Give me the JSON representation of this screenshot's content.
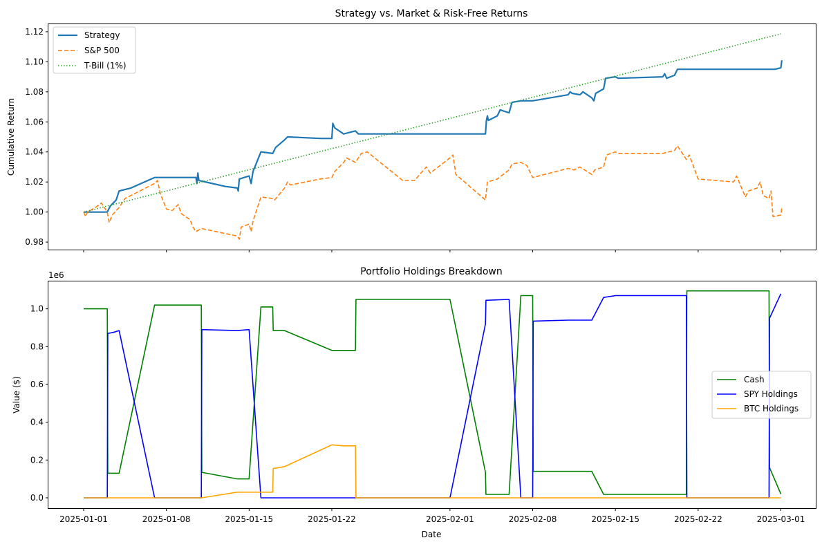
{
  "chart_data": [
    {
      "type": "line",
      "title": "Strategy vs. Market & Risk-Free Returns",
      "xlabel": "",
      "ylabel": "Cumulative Return",
      "x_range": [
        "2025-01-01",
        "2025-03-01"
      ],
      "ylim": [
        0.975,
        1.125
      ],
      "yticks": [
        "0.98",
        "1.00",
        "1.02",
        "1.04",
        "1.06",
        "1.08",
        "1.10",
        "1.12"
      ],
      "yticks_values": [
        0.98,
        1.0,
        1.02,
        1.04,
        1.06,
        1.08,
        1.1,
        1.12
      ],
      "xtick_labels_visible": false,
      "legend_position": "upper-left",
      "series": [
        {
          "name": "Strategy",
          "color": "#1f77b4",
          "style": "solid",
          "points": [
            [
              "2025-01-01",
              1.0
            ],
            [
              "2025-01-02",
              1.0
            ],
            [
              "2025-01-03",
              1.0
            ],
            [
              "2025-01-03 06:00",
              1.004
            ],
            [
              "2025-01-03 18:00",
              1.008
            ],
            [
              "2025-01-04",
              1.014
            ],
            [
              "2025-01-05",
              1.016
            ],
            [
              "2025-01-07",
              1.023
            ],
            [
              "2025-01-08",
              1.023
            ],
            [
              "2025-01-10",
              1.023
            ],
            [
              "2025-01-10 12:00",
              1.023
            ],
            [
              "2025-01-10 14:00",
              1.019
            ],
            [
              "2025-01-10 16:00",
              1.026
            ],
            [
              "2025-01-10 18:00",
              1.021
            ],
            [
              "2025-01-13",
              1.017
            ],
            [
              "2025-01-14",
              1.016
            ],
            [
              "2025-01-14 02:00",
              1.014
            ],
            [
              "2025-01-14 04:00",
              1.022
            ],
            [
              "2025-01-15",
              1.024
            ],
            [
              "2025-01-15 04:00",
              1.019
            ],
            [
              "2025-01-15 08:00",
              1.027
            ],
            [
              "2025-01-16",
              1.04
            ],
            [
              "2025-01-17",
              1.039
            ],
            [
              "2025-01-17 06:00",
              1.043
            ],
            [
              "2025-01-18",
              1.048
            ],
            [
              "2025-01-18 06:00",
              1.05
            ],
            [
              "2025-01-21",
              1.049
            ],
            [
              "2025-01-22",
              1.049
            ],
            [
              "2025-01-22 02:00",
              1.059
            ],
            [
              "2025-01-22 06:00",
              1.056
            ],
            [
              "2025-01-23",
              1.052
            ],
            [
              "2025-01-24",
              1.054
            ],
            [
              "2025-01-24 06:00",
              1.052
            ],
            [
              "2025-02-01",
              1.052
            ],
            [
              "2025-02-04",
              1.052
            ],
            [
              "2025-02-04 02:00",
              1.061
            ],
            [
              "2025-02-04 04:00",
              1.064
            ],
            [
              "2025-02-04 06:00",
              1.061
            ],
            [
              "2025-02-05",
              1.064
            ],
            [
              "2025-02-05 06:00",
              1.068
            ],
            [
              "2025-02-06",
              1.066
            ],
            [
              "2025-02-06 06:00",
              1.073
            ],
            [
              "2025-02-07",
              1.074
            ],
            [
              "2025-02-08",
              1.074
            ],
            [
              "2025-02-11",
              1.078
            ],
            [
              "2025-02-11 04:00",
              1.08
            ],
            [
              "2025-02-11 08:00",
              1.079
            ],
            [
              "2025-02-12",
              1.078
            ],
            [
              "2025-02-12 06:00",
              1.08
            ],
            [
              "2025-02-13",
              1.076
            ],
            [
              "2025-02-13 04:00",
              1.074
            ],
            [
              "2025-02-13 08:00",
              1.079
            ],
            [
              "2025-02-14",
              1.082
            ],
            [
              "2025-02-14 04:00",
              1.089
            ],
            [
              "2025-02-15",
              1.09
            ],
            [
              "2025-02-15 06:00",
              1.089
            ],
            [
              "2025-02-19",
              1.09
            ],
            [
              "2025-02-19 04:00",
              1.092
            ],
            [
              "2025-02-19 08:00",
              1.089
            ],
            [
              "2025-02-20",
              1.091
            ],
            [
              "2025-02-20 06:00",
              1.095
            ],
            [
              "2025-02-28",
              1.095
            ],
            [
              "2025-02-28 12:00",
              1.095
            ],
            [
              "2025-03-01",
              1.096
            ],
            [
              "2025-03-01 02:00",
              1.101
            ]
          ]
        },
        {
          "name": "S&P 500",
          "color": "#ff7f0e",
          "style": "dashed",
          "points": [
            [
              "2025-01-01",
              1.0
            ],
            [
              "2025-01-01 04:00",
              0.997
            ],
            [
              "2025-01-01 08:00",
              1.0
            ],
            [
              "2025-01-02",
              1.003
            ],
            [
              "2025-01-02 12:00",
              1.006
            ],
            [
              "2025-01-03",
              1.0
            ],
            [
              "2025-01-03 04:00",
              0.993
            ],
            [
              "2025-01-03 10:00",
              0.998
            ],
            [
              "2025-01-04",
              1.003
            ],
            [
              "2025-01-04 12:00",
              1.009
            ],
            [
              "2025-01-07",
              1.019
            ],
            [
              "2025-01-07 06:00",
              1.021
            ],
            [
              "2025-01-07 12:00",
              1.012
            ],
            [
              "2025-01-08",
              1.002
            ],
            [
              "2025-01-08 12:00",
              1.001
            ],
            [
              "2025-01-09",
              1.005
            ],
            [
              "2025-01-09 06:00",
              0.999
            ],
            [
              "2025-01-10",
              0.995
            ],
            [
              "2025-01-10 06:00",
              0.99
            ],
            [
              "2025-01-10 12:00",
              0.987
            ],
            [
              "2025-01-11",
              0.989
            ],
            [
              "2025-01-14",
              0.984
            ],
            [
              "2025-01-14 04:00",
              0.982
            ],
            [
              "2025-01-14 08:00",
              0.99
            ],
            [
              "2025-01-15",
              0.992
            ],
            [
              "2025-01-15 04:00",
              0.987
            ],
            [
              "2025-01-15 08:00",
              0.994
            ],
            [
              "2025-01-16",
              1.01
            ],
            [
              "2025-01-17",
              1.009
            ],
            [
              "2025-01-17 04:00",
              1.008
            ],
            [
              "2025-01-18",
              1.016
            ],
            [
              "2025-01-18 06:00",
              1.02
            ],
            [
              "2025-01-18 12:00",
              1.018
            ],
            [
              "2025-01-21",
              1.022
            ],
            [
              "2025-01-22",
              1.023
            ],
            [
              "2025-01-22 06:00",
              1.027
            ],
            [
              "2025-01-23",
              1.033
            ],
            [
              "2025-01-23 06:00",
              1.036
            ],
            [
              "2025-01-24",
              1.033
            ],
            [
              "2025-01-24 12:00",
              1.039
            ],
            [
              "2025-01-25",
              1.04
            ],
            [
              "2025-01-28",
              1.021
            ],
            [
              "2025-01-29",
              1.021
            ],
            [
              "2025-01-30",
              1.03
            ],
            [
              "2025-01-30 08:00",
              1.026
            ],
            [
              "2025-01-31",
              1.03
            ],
            [
              "2025-02-01",
              1.036
            ],
            [
              "2025-02-01 06:00",
              1.038
            ],
            [
              "2025-02-01 12:00",
              1.025
            ],
            [
              "2025-02-04",
              1.008
            ],
            [
              "2025-02-04 04:00",
              1.02
            ],
            [
              "2025-02-05",
              1.022
            ],
            [
              "2025-02-06",
              1.028
            ],
            [
              "2025-02-06 06:00",
              1.032
            ],
            [
              "2025-02-07",
              1.033
            ],
            [
              "2025-02-07 12:00",
              1.031
            ],
            [
              "2025-02-08",
              1.023
            ],
            [
              "2025-02-11",
              1.029
            ],
            [
              "2025-02-11 12:00",
              1.028
            ],
            [
              "2025-02-12",
              1.03
            ],
            [
              "2025-02-13",
              1.025
            ],
            [
              "2025-02-13 06:00",
              1.028
            ],
            [
              "2025-02-14",
              1.03
            ],
            [
              "2025-02-14 06:00",
              1.038
            ],
            [
              "2025-02-15",
              1.04
            ],
            [
              "2025-02-15 06:00",
              1.039
            ],
            [
              "2025-02-19",
              1.039
            ],
            [
              "2025-02-20",
              1.041
            ],
            [
              "2025-02-20 06:00",
              1.044
            ],
            [
              "2025-02-21",
              1.035
            ],
            [
              "2025-02-21 06:00",
              1.038
            ],
            [
              "2025-02-22",
              1.022
            ],
            [
              "2025-02-25",
              1.02
            ],
            [
              "2025-02-25 06:00",
              1.024
            ],
            [
              "2025-02-26",
              1.01
            ],
            [
              "2025-02-26 06:00",
              1.014
            ],
            [
              "2025-02-27",
              1.016
            ],
            [
              "2025-02-27 06:00",
              1.02
            ],
            [
              "2025-02-27 12:00",
              1.011
            ],
            [
              "2025-02-28",
              1.009
            ],
            [
              "2025-02-28 04:00",
              1.014
            ],
            [
              "2025-02-28 08:00",
              0.997
            ],
            [
              "2025-03-01",
              0.998
            ],
            [
              "2025-03-01 02:00",
              1.003
            ]
          ]
        },
        {
          "name": "T-Bill (1%)",
          "color": "#2ca02c",
          "style": "dotted",
          "points": [
            [
              "2025-01-01",
              1.0
            ],
            [
              "2025-03-01",
              1.1186
            ]
          ]
        }
      ]
    },
    {
      "type": "line",
      "title": "Portfolio Holdings Breakdown",
      "xlabel": "Date",
      "ylabel": "Value ($)",
      "scale_label": "1e6",
      "x_range": [
        "2025-01-01",
        "2025-03-01"
      ],
      "ylim": [
        -55000,
        1145000
      ],
      "yticks": [
        "0.0",
        "0.2",
        "0.4",
        "0.6",
        "0.8",
        "1.0"
      ],
      "yticks_values": [
        0,
        200000,
        400000,
        600000,
        800000,
        1000000
      ],
      "xticks": [
        "2025-01-01",
        "2025-01-08",
        "2025-01-15",
        "2025-01-22",
        "2025-02-01",
        "2025-02-08",
        "2025-02-15",
        "2025-02-22",
        "2025-03-01"
      ],
      "legend_position": "center-right",
      "series": [
        {
          "name": "Cash",
          "color": "#008000",
          "points": [
            [
              "2025-01-01",
              1000000
            ],
            [
              "2025-01-03",
              1000000
            ],
            [
              "2025-01-03 01:00",
              130000
            ],
            [
              "2025-01-04",
              130000
            ],
            [
              "2025-01-07",
              1020000
            ],
            [
              "2025-01-10 23:00",
              1020000
            ],
            [
              "2025-01-11",
              135000
            ],
            [
              "2025-01-14",
              100000
            ],
            [
              "2025-01-15",
              100000
            ],
            [
              "2025-01-16",
              1010000
            ],
            [
              "2025-01-17",
              1010000
            ],
            [
              "2025-01-17 01:00",
              885000
            ],
            [
              "2025-01-18",
              885000
            ],
            [
              "2025-01-22",
              780000
            ],
            [
              "2025-01-24",
              780000
            ],
            [
              "2025-01-24 01:00",
              1050000
            ],
            [
              "2025-02-01",
              1050000
            ],
            [
              "2025-02-04",
              135000
            ],
            [
              "2025-02-04 01:00",
              18000
            ],
            [
              "2025-02-06",
              18000
            ],
            [
              "2025-02-07",
              1070000
            ],
            [
              "2025-02-08",
              1070000
            ],
            [
              "2025-02-08 01:00",
              140000
            ],
            [
              "2025-02-13",
              140000
            ],
            [
              "2025-02-14",
              18000
            ],
            [
              "2025-02-21",
              18000
            ],
            [
              "2025-02-21 01:00",
              1095000
            ],
            [
              "2025-02-28",
              1095000
            ],
            [
              "2025-02-28 01:00",
              160000
            ],
            [
              "2025-03-01",
              20000
            ]
          ]
        },
        {
          "name": "SPY Holdings",
          "color": "#0000ff",
          "points": [
            [
              "2025-01-01",
              0
            ],
            [
              "2025-01-03",
              0
            ],
            [
              "2025-01-03 01:00",
              870000
            ],
            [
              "2025-01-03 12:00",
              875000
            ],
            [
              "2025-01-04",
              885000
            ],
            [
              "2025-01-07",
              0
            ],
            [
              "2025-01-10 23:00",
              0
            ],
            [
              "2025-01-11",
              890000
            ],
            [
              "2025-01-14",
              885000
            ],
            [
              "2025-01-15",
              890000
            ],
            [
              "2025-01-16",
              0
            ],
            [
              "2025-02-01",
              0
            ],
            [
              "2025-02-04",
              920000
            ],
            [
              "2025-02-04 01:00",
              1045000
            ],
            [
              "2025-02-06",
              1050000
            ],
            [
              "2025-02-07",
              0
            ],
            [
              "2025-02-08",
              0
            ],
            [
              "2025-02-08 01:00",
              935000
            ],
            [
              "2025-02-11",
              940000
            ],
            [
              "2025-02-13",
              940000
            ],
            [
              "2025-02-14",
              1060000
            ],
            [
              "2025-02-15",
              1070000
            ],
            [
              "2025-02-21",
              1070000
            ],
            [
              "2025-02-21 01:00",
              0
            ],
            [
              "2025-02-28",
              0
            ],
            [
              "2025-02-28 01:00",
              950000
            ],
            [
              "2025-03-01",
              1080000
            ]
          ]
        },
        {
          "name": "BTC Holdings",
          "color": "#ffa500",
          "points": [
            [
              "2025-01-01",
              0
            ],
            [
              "2025-01-11",
              0
            ],
            [
              "2025-01-14",
              30000
            ],
            [
              "2025-01-17",
              30000
            ],
            [
              "2025-01-17 01:00",
              155000
            ],
            [
              "2025-01-18",
              165000
            ],
            [
              "2025-01-22",
              280000
            ],
            [
              "2025-01-23",
              275000
            ],
            [
              "2025-01-24",
              275000
            ],
            [
              "2025-01-24 01:00",
              0
            ],
            [
              "2025-03-01",
              0
            ]
          ]
        }
      ]
    }
  ]
}
